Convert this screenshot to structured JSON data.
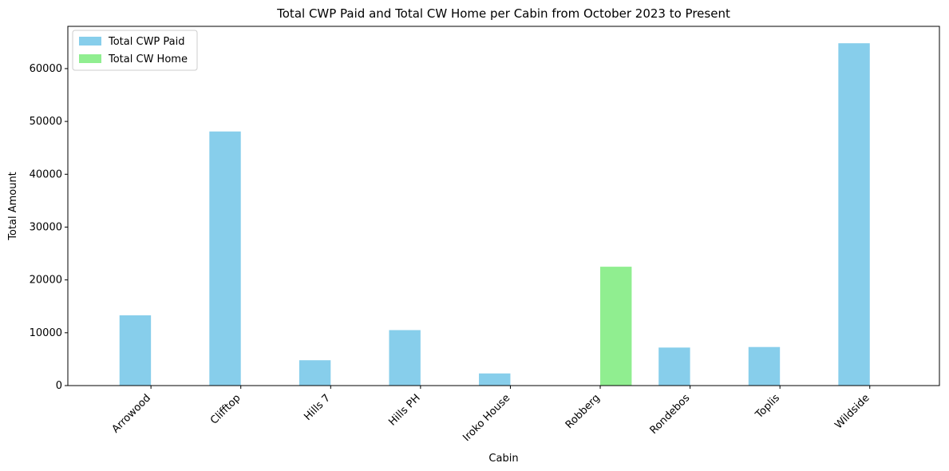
{
  "chart_data": {
    "type": "bar",
    "title": "Total CWP Paid and Total CW Home per Cabin from October 2023 to Present",
    "xlabel": "Cabin",
    "ylabel": "Total Amount",
    "categories": [
      "Arrowood",
      "Clifftop",
      "Hills 7",
      "Hills PH",
      "Iroko House",
      "Robberg",
      "Rondebos",
      "Toplis",
      "Wildside"
    ],
    "series": [
      {
        "name": "Total CWP Paid",
        "color": "#87CEEB",
        "values": [
          13300,
          48100,
          4800,
          10500,
          2300,
          0,
          7200,
          7300,
          64800
        ]
      },
      {
        "name": "Total CW Home",
        "color": "#90EE90",
        "values": [
          0,
          0,
          0,
          0,
          0,
          22500,
          0,
          0,
          0
        ]
      }
    ],
    "ylim": [
      0,
      68000
    ],
    "yticks": [
      0,
      10000,
      20000,
      30000,
      40000,
      50000,
      60000
    ],
    "xtick_rotation": 45,
    "grid": false,
    "legend_position": "top-left"
  }
}
